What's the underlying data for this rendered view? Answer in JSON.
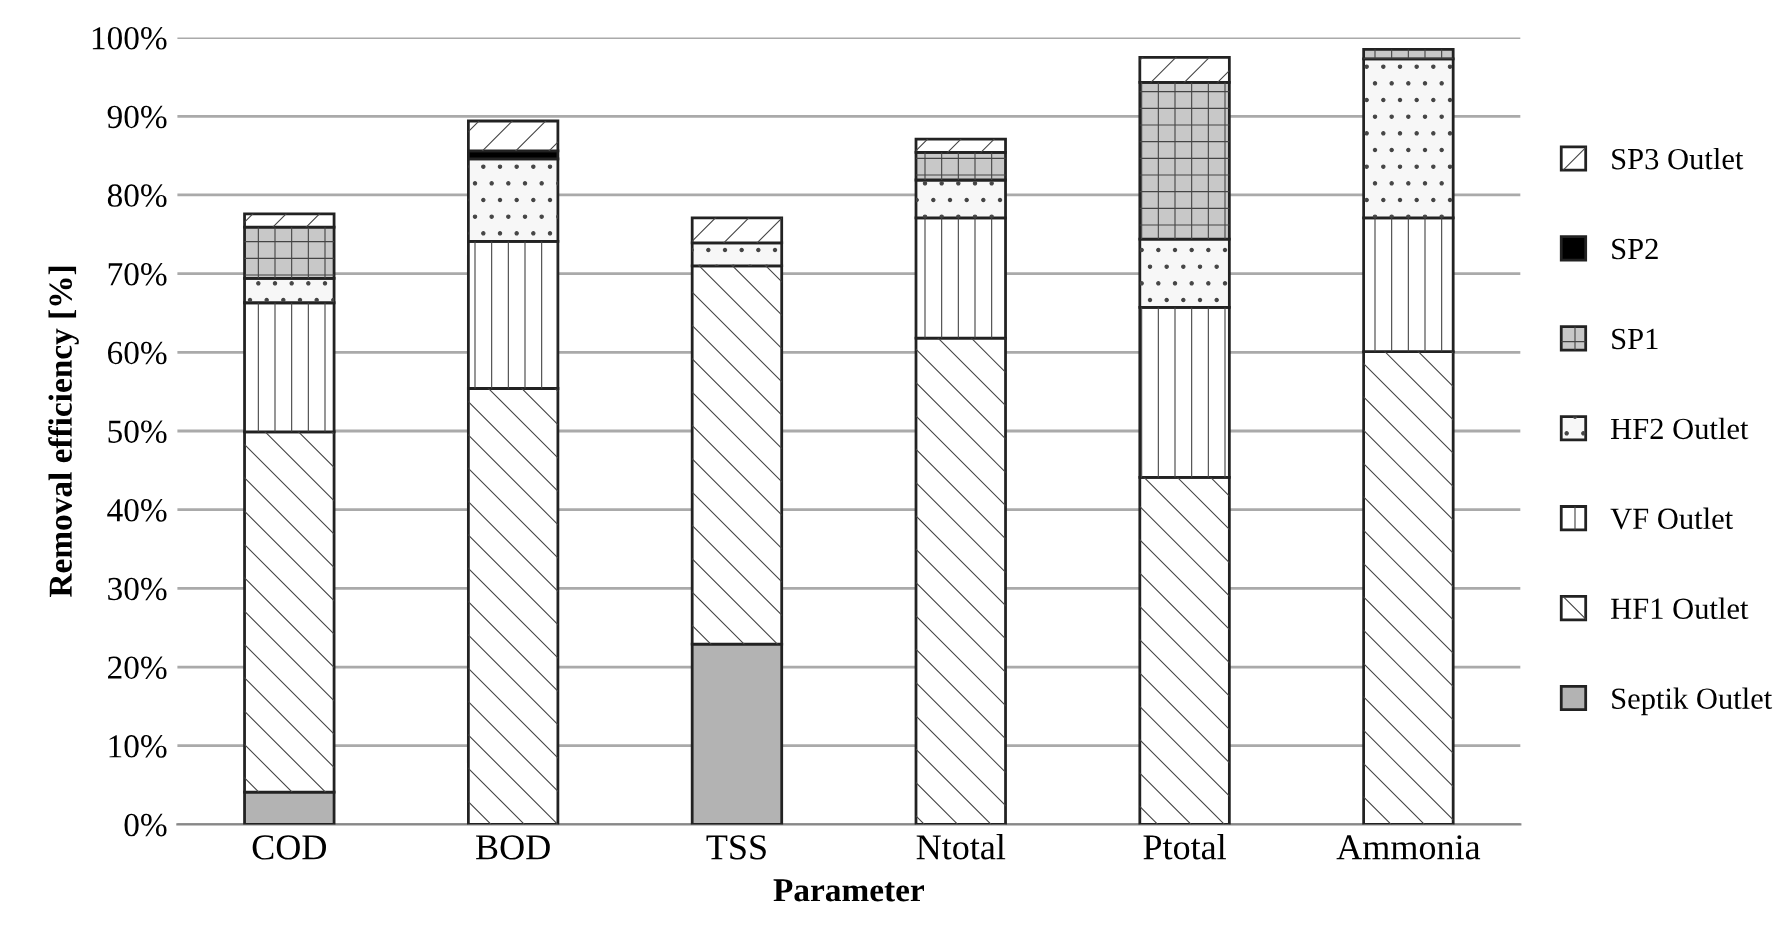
{
  "chart_data": {
    "type": "bar",
    "stacked": true,
    "xlabel": "Parameter",
    "ylabel": "Removal efficiency [%]",
    "categories": [
      "COD",
      "BOD",
      "TSS",
      "Ntotal",
      "Ptotal",
      "Ammonia"
    ],
    "series": [
      {
        "name": "Septik Outlet",
        "color": "#b3b3b3",
        "values": [
          4.1,
          null,
          22.9,
          null,
          null,
          null
        ]
      },
      {
        "name": "HF1 Outlet",
        "color": "#ffffff",
        "values": [
          45.8,
          55.4,
          48.1,
          61.8,
          44.1,
          60.1
        ]
      },
      {
        "name": "VF Outlet",
        "color": "#ffffff",
        "values": [
          16.4,
          18.7,
          null,
          15.3,
          21.6,
          17.0
        ]
      },
      {
        "name": "HF2 Outlet",
        "color": "#f7f7f7",
        "values": [
          3.1,
          10.5,
          2.9,
          4.8,
          8.7,
          20.2
        ]
      },
      {
        "name": "SP1",
        "color": "#c8c8c8",
        "values": [
          6.5,
          null,
          null,
          3.5,
          19.9,
          1.2
        ]
      },
      {
        "name": "SP2",
        "color": "#000000",
        "values": [
          null,
          1.0,
          null,
          null,
          null,
          null
        ]
      },
      {
        "name": "SP3 Outlet",
        "color": "#ffffff",
        "values": [
          1.7,
          3.8,
          3.2,
          1.7,
          3.2,
          null
        ]
      }
    ],
    "ylim": [
      0,
      100
    ],
    "yticks": [
      {
        "value": 0,
        "label": "0%"
      },
      {
        "value": 10,
        "label": "10%"
      },
      {
        "value": 20,
        "label": "20%"
      },
      {
        "value": 30,
        "label": "30%"
      },
      {
        "value": 40,
        "label": "40%"
      },
      {
        "value": 50,
        "label": "50%"
      },
      {
        "value": 60,
        "label": "60%"
      },
      {
        "value": 70,
        "label": "70%"
      },
      {
        "value": 80,
        "label": "80%"
      },
      {
        "value": 90,
        "label": "90%"
      },
      {
        "value": 100,
        "label": "100%"
      }
    ],
    "grid": "y",
    "legend": "right"
  }
}
